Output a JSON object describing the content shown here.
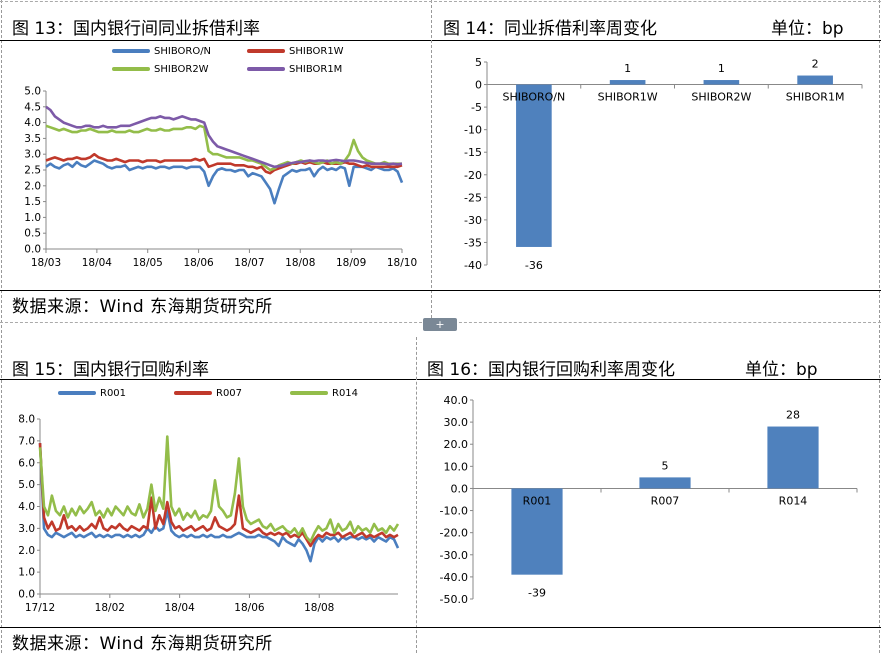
{
  "panels": {
    "fig13": {
      "title": "图 13：国内银行间同业拆借利率",
      "source": "数据来源：Wind  东海期货研究所"
    },
    "fig14": {
      "title": "图 14：同业拆借利率周变化",
      "unit": "单位：bp"
    },
    "fig15": {
      "title": "图 15：国内银行回购利率",
      "source": "数据来源：Wind  东海期货研究所"
    },
    "fig16": {
      "title": "图 16：国内银行回购利率周变化",
      "unit": "单位：bp"
    }
  },
  "expand_label": "+",
  "colors": {
    "blue": "#4a7ebf",
    "red": "#c0392b",
    "green": "#93bd4a",
    "purple": "#7d5aa8",
    "bar": "#4f81bd"
  },
  "chart_data": [
    {
      "id": "fig13",
      "type": "line",
      "x_ticks": [
        "18/03",
        "18/04",
        "18/05",
        "18/06",
        "18/07",
        "18/08",
        "18/09",
        "18/10"
      ],
      "ylim": [
        0.0,
        5.0
      ],
      "y_ticks": [
        "0.0",
        "0.5",
        "1.0",
        "1.5",
        "2.0",
        "2.5",
        "3.0",
        "3.5",
        "4.0",
        "4.5",
        "5.0"
      ],
      "grid": false,
      "legend_position": "top",
      "series": [
        {
          "name": "SHIBORO/N",
          "color": "#4a7ebf",
          "values": [
            2.6,
            2.7,
            2.6,
            2.55,
            2.65,
            2.7,
            2.6,
            2.75,
            2.65,
            2.6,
            2.7,
            2.8,
            2.75,
            2.7,
            2.6,
            2.55,
            2.6,
            2.6,
            2.65,
            2.5,
            2.55,
            2.6,
            2.55,
            2.6,
            2.6,
            2.55,
            2.6,
            2.6,
            2.55,
            2.6,
            2.6,
            2.6,
            2.55,
            2.6,
            2.6,
            2.6,
            2.45,
            2.0,
            2.3,
            2.5,
            2.55,
            2.5,
            2.5,
            2.45,
            2.5,
            2.5,
            2.3,
            2.4,
            2.35,
            2.3,
            2.1,
            1.9,
            1.45,
            1.9,
            2.3,
            2.4,
            2.5,
            2.45,
            2.5,
            2.5,
            2.55,
            2.3,
            2.5,
            2.6,
            2.5,
            2.55,
            2.5,
            2.6,
            2.55,
            2.0,
            2.6,
            2.6,
            2.6,
            2.55,
            2.5,
            2.6,
            2.55,
            2.5,
            2.5,
            2.55,
            2.45,
            2.1
          ]
        },
        {
          "name": "SHIBOR1W",
          "color": "#c0392b",
          "values": [
            2.8,
            2.85,
            2.9,
            2.85,
            2.8,
            2.85,
            2.85,
            2.9,
            2.85,
            2.85,
            2.9,
            3.0,
            2.9,
            2.85,
            2.8,
            2.8,
            2.85,
            2.8,
            2.75,
            2.8,
            2.8,
            2.8,
            2.75,
            2.8,
            2.8,
            2.8,
            2.75,
            2.8,
            2.8,
            2.8,
            2.8,
            2.8,
            2.8,
            2.8,
            2.85,
            2.8,
            2.85,
            2.6,
            2.65,
            2.7,
            2.7,
            2.7,
            2.7,
            2.65,
            2.65,
            2.65,
            2.6,
            2.6,
            2.55,
            2.6,
            2.45,
            2.4,
            2.5,
            2.55,
            2.6,
            2.65,
            2.7,
            2.7,
            2.75,
            2.7,
            2.75,
            2.7,
            2.7,
            2.75,
            2.7,
            2.7,
            2.7,
            2.7,
            2.75,
            2.7,
            2.7,
            2.65,
            2.6,
            2.65,
            2.6,
            2.6,
            2.6,
            2.6,
            2.6,
            2.6,
            2.6,
            2.65
          ]
        },
        {
          "name": "SHIBOR2W",
          "color": "#93bd4a",
          "values": [
            3.9,
            3.85,
            3.8,
            3.75,
            3.8,
            3.75,
            3.7,
            3.7,
            3.75,
            3.75,
            3.8,
            3.75,
            3.7,
            3.7,
            3.7,
            3.75,
            3.7,
            3.7,
            3.7,
            3.75,
            3.7,
            3.7,
            3.75,
            3.8,
            3.75,
            3.75,
            3.8,
            3.75,
            3.75,
            3.8,
            3.8,
            3.8,
            3.85,
            3.85,
            3.8,
            3.9,
            3.85,
            3.1,
            3.0,
            3.0,
            2.95,
            2.9,
            2.9,
            2.9,
            2.9,
            2.85,
            2.8,
            2.8,
            2.75,
            2.7,
            2.6,
            2.5,
            2.55,
            2.65,
            2.7,
            2.75,
            2.7,
            2.75,
            2.8,
            2.75,
            2.8,
            2.75,
            2.7,
            2.75,
            2.8,
            2.7,
            2.75,
            2.7,
            2.8,
            3.0,
            3.45,
            3.1,
            2.9,
            2.8,
            2.75,
            2.7,
            2.7,
            2.75,
            2.7,
            2.7,
            2.7,
            2.7
          ]
        },
        {
          "name": "SHIBOR1M",
          "color": "#7d5aa8",
          "values": [
            4.5,
            4.4,
            4.2,
            4.1,
            4.0,
            3.95,
            3.9,
            3.85,
            3.85,
            3.9,
            3.9,
            3.85,
            3.85,
            3.9,
            3.85,
            3.85,
            3.85,
            3.9,
            3.9,
            3.9,
            3.95,
            4.0,
            4.05,
            4.1,
            4.15,
            4.15,
            4.2,
            4.15,
            4.15,
            4.1,
            4.15,
            4.2,
            4.15,
            4.1,
            4.1,
            4.05,
            4.0,
            3.6,
            3.4,
            3.25,
            3.2,
            3.15,
            3.1,
            3.05,
            3.0,
            2.95,
            2.9,
            2.85,
            2.8,
            2.75,
            2.7,
            2.65,
            2.6,
            2.62,
            2.65,
            2.7,
            2.72,
            2.75,
            2.75,
            2.78,
            2.8,
            2.78,
            2.8,
            2.8,
            2.78,
            2.8,
            2.82,
            2.8,
            2.78,
            2.8,
            2.8,
            2.78,
            2.75,
            2.72,
            2.7,
            2.7,
            2.7,
            2.7,
            2.68,
            2.7,
            2.68,
            2.7
          ]
        }
      ]
    },
    {
      "id": "fig14",
      "type": "bar",
      "categories": [
        "SHIBORO/N",
        "SHIBOR1W",
        "SHIBOR2W",
        "SHIBOR1M"
      ],
      "values": [
        -36,
        1,
        1,
        2
      ],
      "data_labels": [
        "-36",
        "1",
        "1",
        "2"
      ],
      "ylim": [
        -40,
        5
      ],
      "y_ticks": [
        "5",
        "0",
        "-5",
        "-10",
        "-15",
        "-20",
        "-25",
        "-30",
        "-35",
        "-40"
      ],
      "grid": false,
      "color": "#4f81bd"
    },
    {
      "id": "fig15",
      "type": "line",
      "x_ticks": [
        "17/12",
        "18/02",
        "18/04",
        "18/06",
        "18/08"
      ],
      "ylim": [
        0.0,
        8.0
      ],
      "y_ticks": [
        "0.0",
        "1.0",
        "2.0",
        "3.0",
        "4.0",
        "5.0",
        "6.0",
        "7.0",
        "8.0"
      ],
      "grid": false,
      "legend_position": "top",
      "series": [
        {
          "name": "R001",
          "color": "#4a7ebf",
          "values": [
            6.9,
            3.0,
            2.7,
            2.6,
            2.8,
            2.7,
            2.6,
            2.7,
            2.8,
            2.6,
            2.7,
            2.6,
            2.7,
            2.8,
            2.6,
            2.7,
            2.6,
            2.7,
            2.6,
            2.7,
            2.7,
            2.6,
            2.7,
            2.6,
            2.7,
            2.6,
            2.7,
            3.0,
            2.8,
            3.1,
            2.9,
            3.0,
            3.8,
            2.9,
            2.7,
            2.6,
            2.7,
            2.6,
            2.7,
            2.6,
            2.6,
            2.7,
            2.6,
            2.7,
            2.6,
            2.6,
            2.7,
            2.6,
            2.6,
            2.7,
            2.8,
            2.7,
            2.6,
            2.6,
            2.6,
            2.7,
            2.6,
            2.6,
            2.5,
            2.4,
            2.2,
            2.6,
            2.4,
            2.3,
            2.2,
            2.5,
            2.3,
            2.0,
            1.5,
            2.3,
            2.6,
            2.4,
            2.6,
            2.5,
            2.6,
            2.4,
            2.6,
            2.5,
            2.6,
            2.6,
            2.5,
            2.6,
            2.5,
            2.6,
            2.4,
            2.6,
            2.5,
            2.4,
            2.6,
            2.5,
            2.1
          ]
        },
        {
          "name": "R007",
          "color": "#c0392b",
          "values": [
            6.9,
            3.5,
            3.0,
            3.3,
            2.9,
            3.0,
            3.6,
            3.0,
            3.1,
            2.9,
            3.1,
            2.9,
            3.0,
            3.2,
            3.0,
            3.5,
            3.0,
            2.9,
            3.1,
            3.0,
            3.2,
            3.0,
            2.9,
            3.1,
            3.0,
            2.9,
            3.1,
            3.0,
            4.4,
            3.0,
            3.6,
            3.2,
            4.2,
            3.3,
            3.0,
            3.1,
            2.9,
            3.0,
            3.1,
            2.9,
            3.0,
            3.1,
            2.9,
            3.0,
            3.5,
            3.1,
            3.0,
            2.9,
            3.0,
            3.2,
            4.5,
            3.0,
            2.9,
            2.8,
            2.9,
            3.0,
            2.8,
            2.7,
            2.8,
            2.7,
            2.8,
            2.7,
            2.8,
            2.6,
            2.7,
            2.6,
            2.8,
            2.5,
            2.2,
            2.5,
            2.7,
            2.6,
            2.8,
            2.7,
            2.7,
            2.8,
            2.6,
            2.7,
            2.8,
            2.6,
            2.7,
            2.8,
            2.6,
            2.7,
            2.6,
            2.7,
            2.8,
            2.6,
            2.7,
            2.6,
            2.7
          ]
        },
        {
          "name": "R014",
          "color": "#93bd4a",
          "values": [
            6.7,
            4.0,
            3.6,
            4.5,
            3.8,
            3.6,
            4.0,
            3.5,
            3.9,
            3.6,
            4.0,
            3.7,
            3.9,
            4.2,
            3.6,
            3.8,
            3.5,
            3.9,
            3.6,
            4.0,
            3.8,
            3.6,
            4.0,
            3.7,
            3.6,
            4.1,
            3.5,
            3.9,
            5.0,
            3.8,
            4.4,
            3.9,
            7.2,
            4.0,
            3.6,
            3.9,
            3.4,
            3.7,
            3.5,
            3.8,
            3.4,
            3.6,
            3.5,
            3.8,
            5.2,
            4.0,
            3.8,
            3.5,
            3.6,
            4.6,
            6.2,
            4.0,
            3.4,
            3.2,
            3.3,
            3.4,
            3.1,
            3.0,
            3.2,
            2.9,
            3.0,
            3.1,
            2.9,
            2.8,
            3.0,
            2.7,
            3.0,
            2.6,
            2.4,
            2.8,
            3.1,
            2.9,
            3.0,
            3.4,
            2.8,
            3.2,
            2.9,
            3.0,
            3.3,
            2.8,
            3.1,
            2.9,
            3.0,
            2.8,
            3.2,
            2.9,
            3.0,
            2.8,
            3.1,
            2.9,
            3.2
          ]
        }
      ]
    },
    {
      "id": "fig16",
      "type": "bar",
      "categories": [
        "R001",
        "R007",
        "R014"
      ],
      "values": [
        -39,
        5,
        28
      ],
      "data_labels": [
        "-39",
        "5",
        "28"
      ],
      "ylim": [
        -50,
        40
      ],
      "y_ticks": [
        "40.0",
        "30.0",
        "20.0",
        "10.0",
        "0.0",
        "-10.0",
        "-20.0",
        "-30.0",
        "-40.0",
        "-50.0"
      ],
      "grid": false,
      "color": "#4f81bd"
    }
  ]
}
